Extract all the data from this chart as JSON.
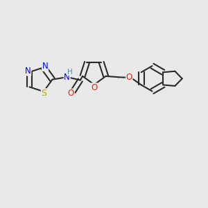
{
  "background_color": "#e9e9e9",
  "bond_color": "#2a2a2a",
  "bond_width": 1.5,
  "atom_colors": {
    "N": "#0000ee",
    "S": "#bbaa00",
    "O": "#ee2200",
    "H": "#4488aa",
    "C": "#2a2a2a"
  },
  "font_size": 8.5,
  "fig_width": 3.0,
  "fig_height": 3.0,
  "dpi": 100,
  "xlim": [
    0.0,
    10.0
  ],
  "ylim": [
    0.0,
    10.0
  ]
}
